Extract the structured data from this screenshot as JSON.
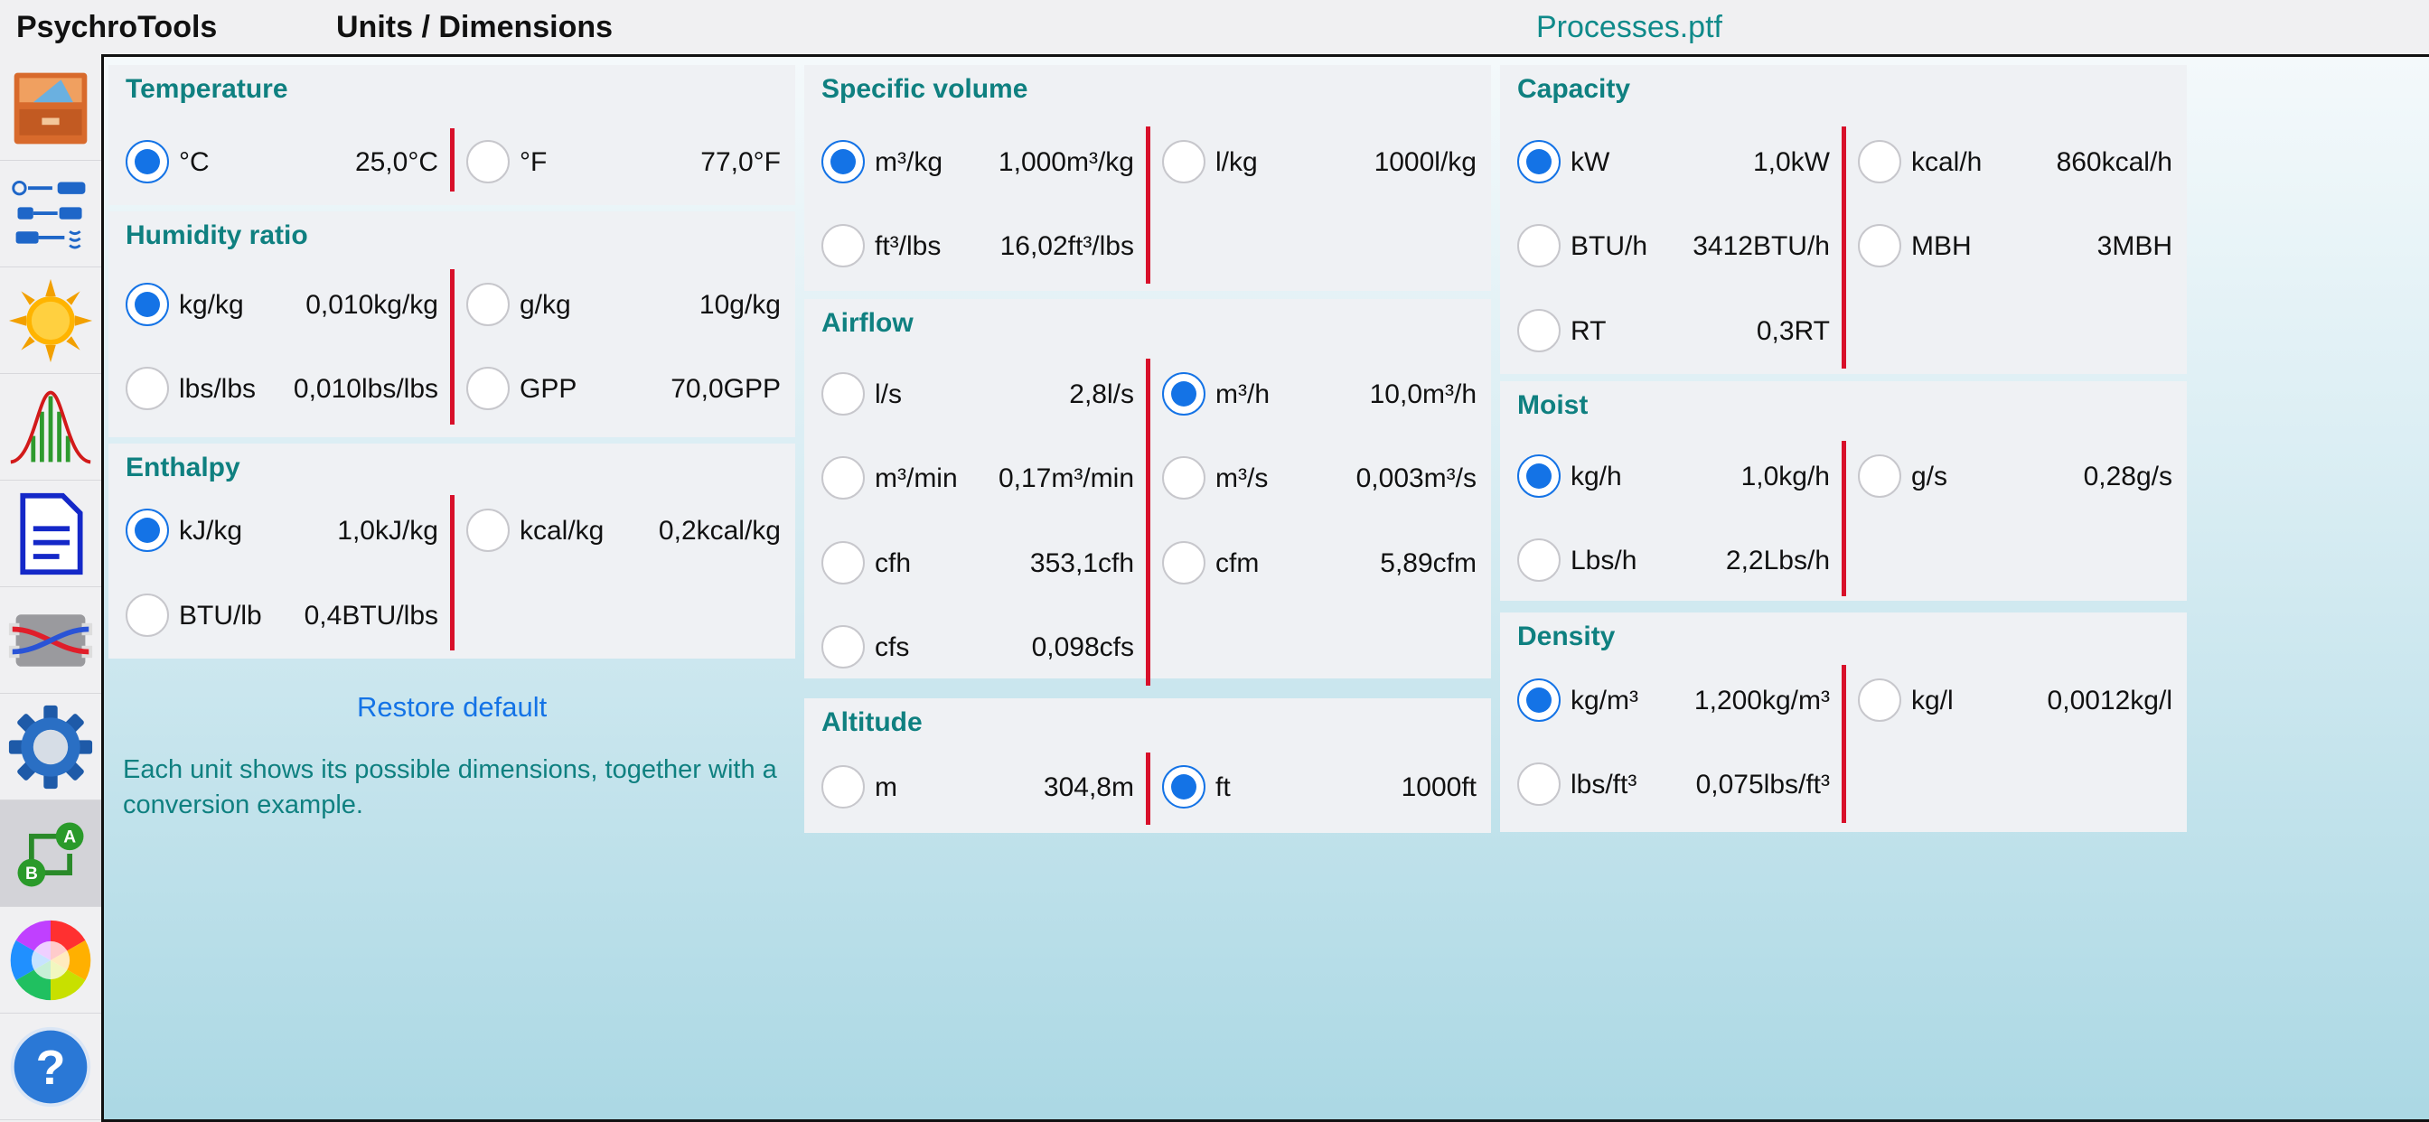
{
  "app": {
    "title": "PsychroTools",
    "page_title": "Units / Dimensions",
    "file_name": "Processes.ptf"
  },
  "sidebar": {
    "items": [
      {
        "name": "sidebar-item-files",
        "icon": "file-cabinet-icon"
      },
      {
        "name": "sidebar-item-processes",
        "icon": "process-flow-icon"
      },
      {
        "name": "sidebar-item-climate",
        "icon": "sun-icon"
      },
      {
        "name": "sidebar-item-statistics",
        "icon": "bell-curve-icon"
      },
      {
        "name": "sidebar-item-report",
        "icon": "document-icon"
      },
      {
        "name": "sidebar-item-heat-exchanger",
        "icon": "heat-exchanger-icon"
      },
      {
        "name": "sidebar-item-settings",
        "icon": "gear-icon"
      },
      {
        "name": "sidebar-item-units",
        "icon": "unit-conversion-icon",
        "active": true
      },
      {
        "name": "sidebar-item-colors",
        "icon": "color-wheel-icon"
      },
      {
        "name": "sidebar-item-help",
        "icon": "help-icon"
      }
    ]
  },
  "colors": {
    "accent_teal": "#0f8080",
    "selected_blue": "#1473e6",
    "separator_red": "#d8102a"
  },
  "units": {
    "temperature": {
      "title": "Temperature",
      "options": [
        {
          "unit": "°C",
          "value": "25,0°C",
          "selected": true
        },
        {
          "unit": "°F",
          "value": "77,0°F",
          "selected": false
        }
      ]
    },
    "humidity_ratio": {
      "title": "Humidity ratio",
      "options": [
        {
          "unit": "kg/kg",
          "value": "0,010kg/kg",
          "selected": true
        },
        {
          "unit": "g/kg",
          "value": "10g/kg",
          "selected": false
        },
        {
          "unit": "lbs/lbs",
          "value": "0,010lbs/lbs",
          "selected": false
        },
        {
          "unit": "GPP",
          "value": "70,0GPP",
          "selected": false
        }
      ]
    },
    "enthalpy": {
      "title": "Enthalpy",
      "options": [
        {
          "unit": "kJ/kg",
          "value": "1,0kJ/kg",
          "selected": true
        },
        {
          "unit": "kcal/kg",
          "value": "0,2kcal/kg",
          "selected": false
        },
        {
          "unit": "BTU/lb",
          "value": "0,4BTU/lbs",
          "selected": false
        }
      ]
    },
    "specific_volume": {
      "title": "Specific volume",
      "options": [
        {
          "unit": "m³/kg",
          "value": "1,000m³/kg",
          "selected": true
        },
        {
          "unit": "l/kg",
          "value": "1000l/kg",
          "selected": false
        },
        {
          "unit": "ft³/lbs",
          "value": "16,02ft³/lbs",
          "selected": false
        }
      ]
    },
    "airflow": {
      "title": "Airflow",
      "options": [
        {
          "unit": "l/s",
          "value": "2,8l/s",
          "selected": false
        },
        {
          "unit": "m³/h",
          "value": "10,0m³/h",
          "selected": true
        },
        {
          "unit": "m³/min",
          "value": "0,17m³/min",
          "selected": false
        },
        {
          "unit": "m³/s",
          "value": "0,003m³/s",
          "selected": false
        },
        {
          "unit": "cfh",
          "value": "353,1cfh",
          "selected": false
        },
        {
          "unit": "cfm",
          "value": "5,89cfm",
          "selected": false
        },
        {
          "unit": "cfs",
          "value": "0,098cfs",
          "selected": false
        }
      ]
    },
    "altitude": {
      "title": "Altitude",
      "options": [
        {
          "unit": "m",
          "value": "304,8m",
          "selected": false
        },
        {
          "unit": "ft",
          "value": "1000ft",
          "selected": true
        }
      ]
    },
    "capacity": {
      "title": "Capacity",
      "options": [
        {
          "unit": "kW",
          "value": "1,0kW",
          "selected": true
        },
        {
          "unit": "kcal/h",
          "value": "860kcal/h",
          "selected": false
        },
        {
          "unit": "BTU/h",
          "value": "3412BTU/h",
          "selected": false
        },
        {
          "unit": "MBH",
          "value": "3MBH",
          "selected": false
        },
        {
          "unit": "RT",
          "value": "0,3RT",
          "selected": false
        }
      ]
    },
    "moist": {
      "title": "Moist",
      "options": [
        {
          "unit": "kg/h",
          "value": "1,0kg/h",
          "selected": true
        },
        {
          "unit": "g/s",
          "value": "0,28g/s",
          "selected": false
        },
        {
          "unit": "Lbs/h",
          "value": "2,2Lbs/h",
          "selected": false
        }
      ]
    },
    "density": {
      "title": "Density",
      "options": [
        {
          "unit": "kg/m³",
          "value": "1,200kg/m³",
          "selected": true
        },
        {
          "unit": "kg/l",
          "value": "0,0012kg/l",
          "selected": false
        },
        {
          "unit": "lbs/ft³",
          "value": "0,075lbs/ft³",
          "selected": false
        }
      ]
    }
  },
  "footer": {
    "restore_label": "Restore default",
    "hint": "Each unit shows its possible dimensions, together with a conversion example."
  }
}
